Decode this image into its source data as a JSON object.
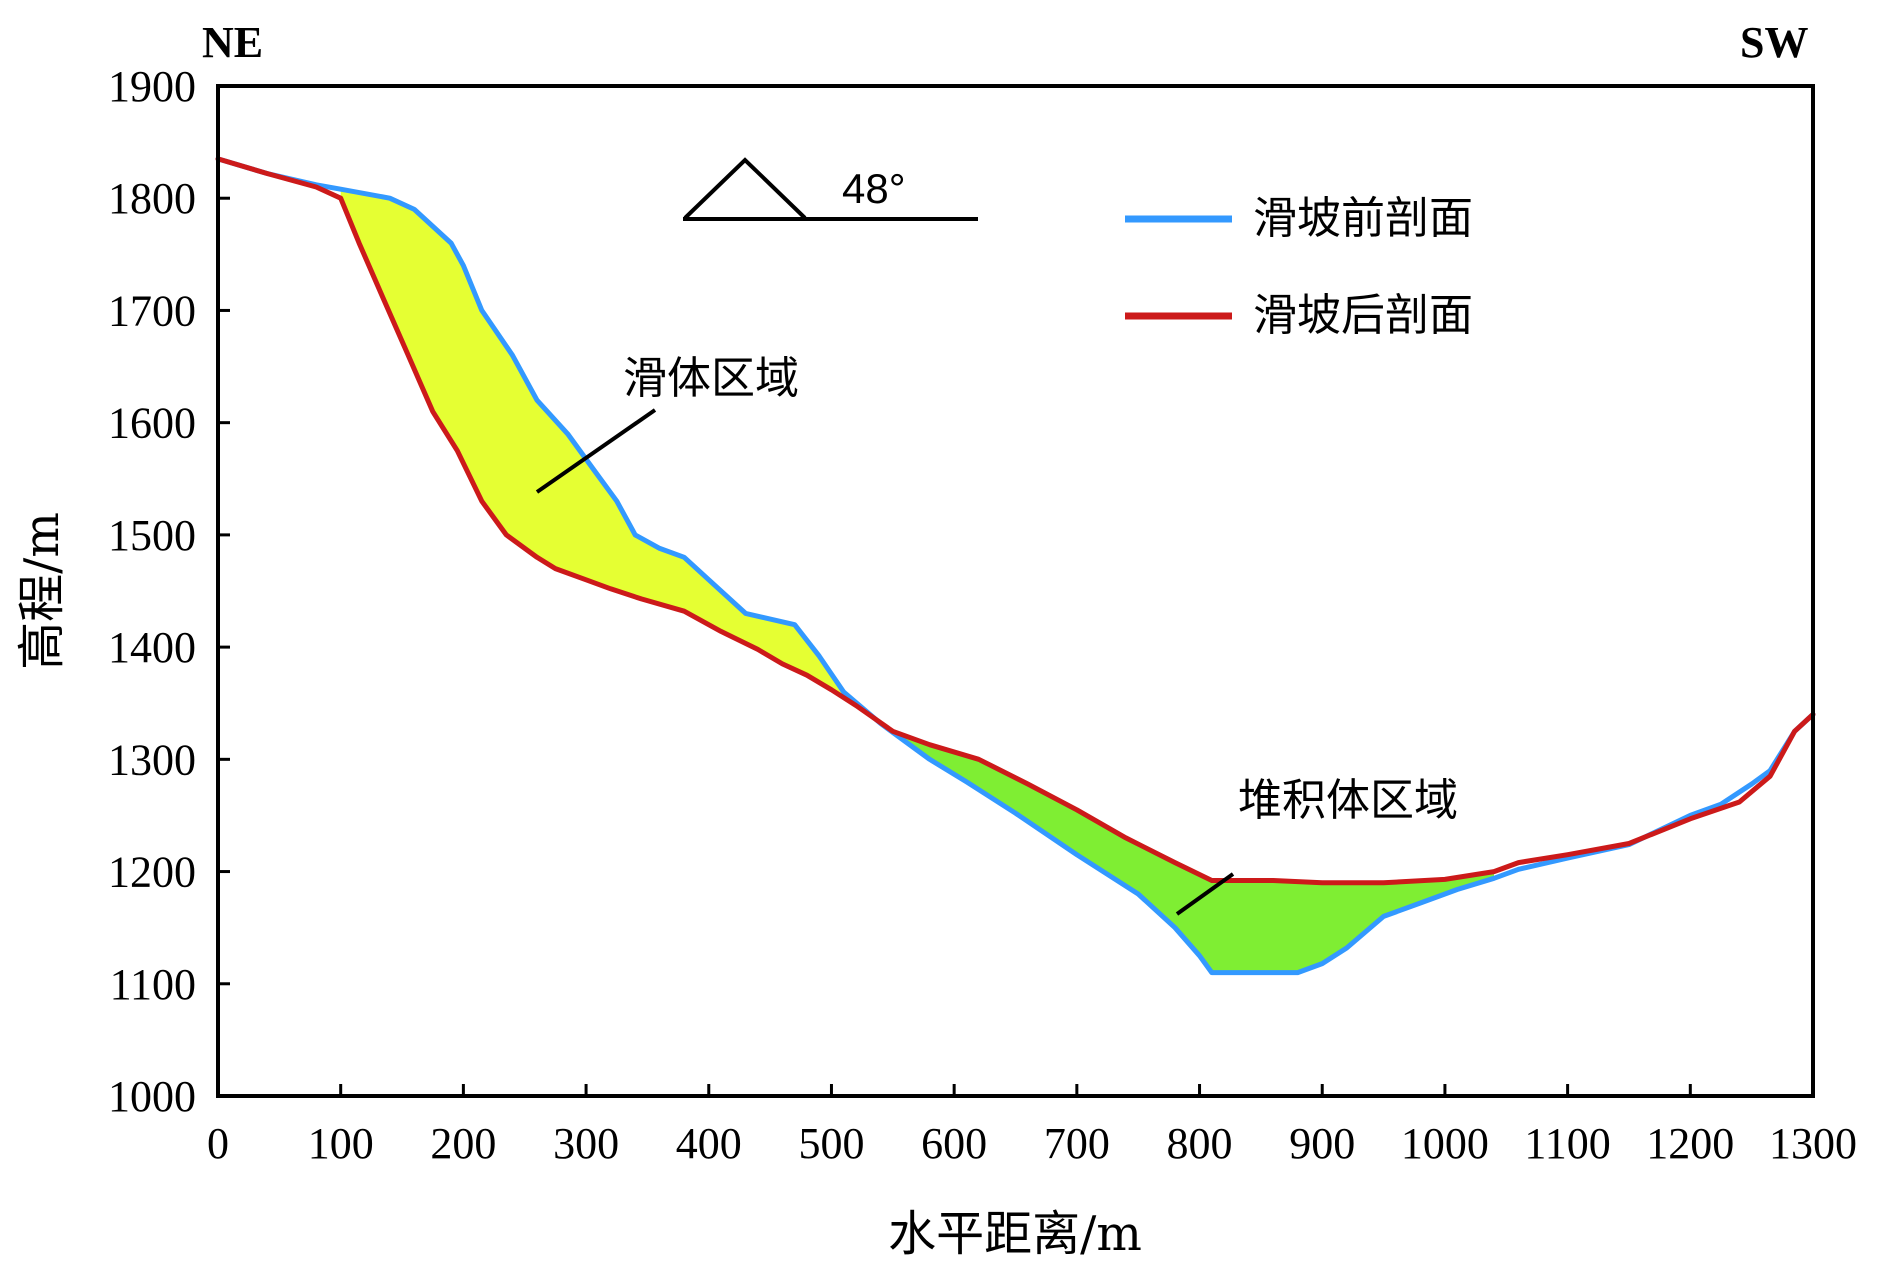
{
  "chart_data": {
    "type": "area",
    "xlabel": "水平距离/m",
    "ylabel": "高程/m",
    "xlim": [
      0,
      1300
    ],
    "ylim": [
      1000,
      1900
    ],
    "x_ticks": [
      "0",
      "100",
      "200",
      "300",
      "400",
      "500",
      "600",
      "700",
      "800",
      "900",
      "1000",
      "1100",
      "1200",
      "1300"
    ],
    "y_ticks": [
      "1000",
      "1100",
      "1200",
      "1300",
      "1400",
      "1500",
      "1600",
      "1700",
      "1800",
      "1900"
    ],
    "grid": false,
    "legend_position": "top-right",
    "direction_left": "NE",
    "direction_right": "SW",
    "slope_angle_label": "48°",
    "series": [
      {
        "name": "滑坡前剖面",
        "color": "#3399ff",
        "points": [
          [
            0,
            1835
          ],
          [
            40,
            1822
          ],
          [
            80,
            1812
          ],
          [
            100,
            1808
          ],
          [
            140,
            1800
          ],
          [
            160,
            1790
          ],
          [
            190,
            1760
          ],
          [
            200,
            1740
          ],
          [
            215,
            1700
          ],
          [
            240,
            1660
          ],
          [
            260,
            1620
          ],
          [
            285,
            1590
          ],
          [
            305,
            1560
          ],
          [
            325,
            1530
          ],
          [
            340,
            1500
          ],
          [
            360,
            1488
          ],
          [
            380,
            1480
          ],
          [
            400,
            1460
          ],
          [
            430,
            1430
          ],
          [
            470,
            1420
          ],
          [
            490,
            1392
          ],
          [
            510,
            1360
          ],
          [
            540,
            1332
          ],
          [
            580,
            1300
          ],
          [
            610,
            1280
          ],
          [
            650,
            1252
          ],
          [
            700,
            1215
          ],
          [
            750,
            1180
          ],
          [
            780,
            1150
          ],
          [
            800,
            1125
          ],
          [
            810,
            1110
          ],
          [
            820,
            1110
          ],
          [
            880,
            1110
          ],
          [
            900,
            1118
          ],
          [
            920,
            1132
          ],
          [
            950,
            1160
          ],
          [
            980,
            1172
          ],
          [
            1010,
            1184
          ],
          [
            1040,
            1194
          ],
          [
            1060,
            1202
          ],
          [
            1100,
            1212
          ],
          [
            1150,
            1224
          ],
          [
            1200,
            1250
          ],
          [
            1225,
            1260
          ],
          [
            1250,
            1278
          ],
          [
            1265,
            1290
          ],
          [
            1285,
            1325
          ],
          [
            1300,
            1340
          ]
        ]
      },
      {
        "name": "滑坡后剖面",
        "color": "#cc1a1a",
        "points": [
          [
            0,
            1835
          ],
          [
            40,
            1822
          ],
          [
            80,
            1810
          ],
          [
            100,
            1800
          ],
          [
            115,
            1760
          ],
          [
            135,
            1710
          ],
          [
            155,
            1660
          ],
          [
            175,
            1610
          ],
          [
            195,
            1575
          ],
          [
            215,
            1530
          ],
          [
            235,
            1500
          ],
          [
            260,
            1480
          ],
          [
            275,
            1470
          ],
          [
            300,
            1460
          ],
          [
            320,
            1452
          ],
          [
            345,
            1443
          ],
          [
            380,
            1432
          ],
          [
            410,
            1414
          ],
          [
            440,
            1398
          ],
          [
            460,
            1385
          ],
          [
            480,
            1375
          ],
          [
            500,
            1362
          ],
          [
            520,
            1348
          ],
          [
            550,
            1325
          ],
          [
            580,
            1313
          ],
          [
            620,
            1300
          ],
          [
            660,
            1278
          ],
          [
            700,
            1255
          ],
          [
            740,
            1230
          ],
          [
            780,
            1208
          ],
          [
            810,
            1192
          ],
          [
            860,
            1192
          ],
          [
            900,
            1190
          ],
          [
            950,
            1190
          ],
          [
            1000,
            1193
          ],
          [
            1040,
            1200
          ],
          [
            1060,
            1208
          ],
          [
            1100,
            1215
          ],
          [
            1150,
            1225
          ],
          [
            1200,
            1247
          ],
          [
            1240,
            1262
          ],
          [
            1265,
            1285
          ],
          [
            1285,
            1325
          ],
          [
            1300,
            1340
          ]
        ]
      }
    ],
    "regions": [
      {
        "name": "滑体区域",
        "color": "#e5ff33",
        "x_range": [
          100,
          525
        ]
      },
      {
        "name": "堆积体区域",
        "color": "#7fee33",
        "x_range": [
          550,
          1040
        ]
      }
    ]
  }
}
